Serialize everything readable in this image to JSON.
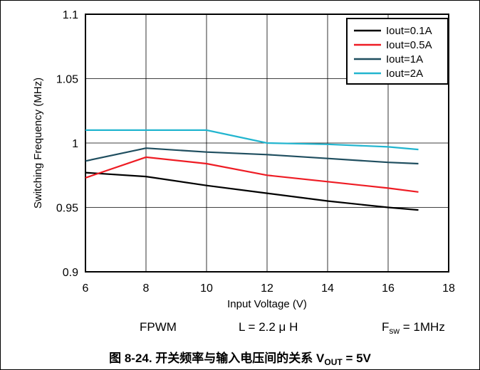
{
  "chart_data": {
    "type": "line",
    "xlabel": "Input Voltage (V)",
    "ylabel": "Switching Frequency (MHz)",
    "xlim": [
      6,
      18
    ],
    "ylim": [
      0.9,
      1.1
    ],
    "xticks": [
      "6",
      "8",
      "10",
      "12",
      "14",
      "16",
      "18"
    ],
    "yticks": [
      "0.9",
      "0.95",
      "1",
      "1.05",
      "1.1"
    ],
    "grid": true,
    "legend_position": "top-right",
    "series": [
      {
        "name": "Iout=0.1A",
        "color": "#000000",
        "x": [
          6,
          8,
          10,
          12,
          14,
          16,
          17
        ],
        "y": [
          0.977,
          0.974,
          0.967,
          0.961,
          0.955,
          0.95,
          0.948
        ]
      },
      {
        "name": "Iout=0.5A",
        "color": "#ee1c24",
        "x": [
          6,
          8,
          10,
          12,
          14,
          16,
          17
        ],
        "y": [
          0.973,
          0.989,
          0.984,
          0.975,
          0.97,
          0.965,
          0.962
        ]
      },
      {
        "name": "Iout=1A",
        "color": "#1f4e5f",
        "x": [
          6,
          8,
          10,
          12,
          14,
          16,
          17
        ],
        "y": [
          0.986,
          0.996,
          0.993,
          0.991,
          0.988,
          0.985,
          0.984
        ]
      },
      {
        "name": "Iout=2A",
        "color": "#22b5cf",
        "x": [
          6,
          8,
          10,
          12,
          14,
          16,
          17
        ],
        "y": [
          1.01,
          1.01,
          1.01,
          1.0,
          0.999,
          0.997,
          0.995
        ]
      }
    ]
  },
  "notes": {
    "mode": "FPWM",
    "inductor": "L = 2.2 μ H",
    "fsw_symbol": "F",
    "fsw_subscript": "sw",
    "fsw_value": " = 1MHz"
  },
  "caption": {
    "text": "图 8-24. 开关频率与输入电压间的关系 V",
    "subscript": "OUT",
    "suffix": " = 5V"
  }
}
